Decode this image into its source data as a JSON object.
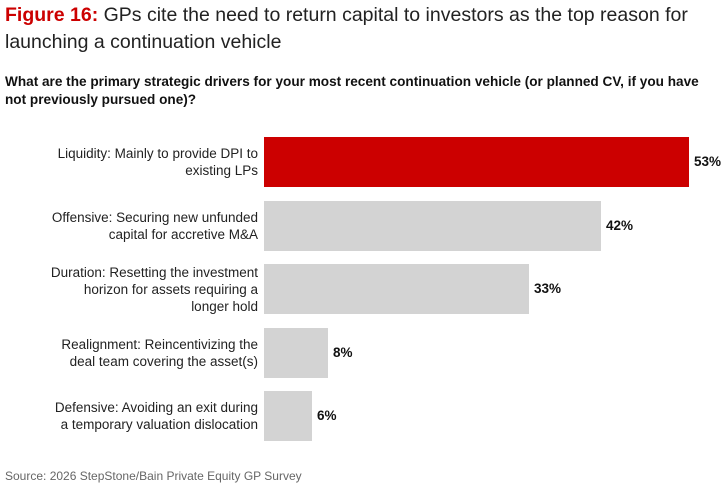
{
  "figure": {
    "label": "Figure 16:",
    "title": "GPs cite the need to return capital to investors as the top reason for launching a continuation vehicle"
  },
  "question": "What are the primary strategic drivers for your most recent continuation vehicle (or planned CV, if you have not previously pursued one)?",
  "source": "Source: 2026 StepStone/Bain Private Equity GP Survey",
  "colors": {
    "highlight": "#cc0000",
    "default": "#d3d3d3"
  },
  "chart_data": {
    "type": "bar",
    "orientation": "horizontal",
    "title": "What are the primary strategic drivers for your most recent continuation vehicle (or planned CV, if you have not previously pursued one)?",
    "xlabel": "",
    "ylabel": "",
    "xlim": [
      0,
      53
    ],
    "grid": false,
    "categories": [
      "Liquidity: Mainly to provide DPI to existing LPs",
      "Offensive: Securing new unfunded capital for accretive M&A",
      "Duration: Resetting the investment horizon for assets requiring a longer hold",
      "Realignment: Reincentivizing the deal team covering the asset(s)",
      "Defensive: Avoiding an exit during a temporary valuation dislocation"
    ],
    "category_lines": [
      [
        "Liquidity: Mainly to provide DPI to",
        "existing LPs"
      ],
      [
        "Offensive: Securing new unfunded",
        "capital for accretive M&A"
      ],
      [
        "Duration: Resetting the investment",
        "horizon for assets requiring a",
        "longer hold"
      ],
      [
        "Realignment: Reincentivizing the",
        "deal team covering the asset(s)"
      ],
      [
        "Defensive: Avoiding an exit during",
        "a temporary valuation dislocation"
      ]
    ],
    "values": [
      53,
      42,
      33,
      8,
      6
    ],
    "value_labels": [
      "53%",
      "42%",
      "33%",
      "8%",
      "6%"
    ],
    "highlighted": [
      true,
      false,
      false,
      false,
      false
    ]
  }
}
